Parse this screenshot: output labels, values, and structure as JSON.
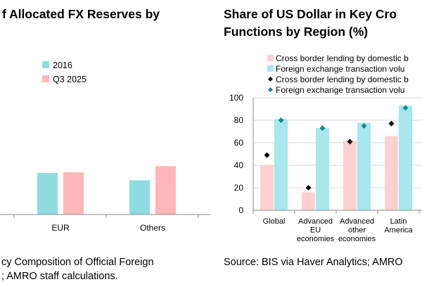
{
  "chart_data": [
    {
      "type": "bar",
      "title_lines": [
        "f Allocated FX Reserves by"
      ],
      "categories": [
        "EUR",
        "Others"
      ],
      "series": [
        {
          "name": "2016",
          "color": "#8fdbe2",
          "values": [
            19.7,
            16.2
          ]
        },
        {
          "name": "Q3 2025",
          "color": "#ffb6b9",
          "values": [
            20.0,
            22.9
          ]
        }
      ],
      "source_lines": [
        "cy Composition of Official Foreign",
        "; AMRO staff calculations."
      ],
      "grid": false,
      "legend_position": "top"
    },
    {
      "type": "bar",
      "title_lines": [
        "Share of US Dollar in Key Cro",
        "Functions by Region (%)"
      ],
      "categories": [
        "Global",
        "Advanced EU economies",
        "Advanced other economies",
        "Latin America"
      ],
      "category_label_lines": [
        [
          "Global"
        ],
        [
          "Advanced",
          "EU",
          "economies"
        ],
        [
          "Advanced",
          "other",
          "economies"
        ],
        [
          "Latin",
          "America"
        ]
      ],
      "ylim": [
        0,
        100
      ],
      "yticks": [
        "0",
        "20",
        "40",
        "60",
        "80",
        "100"
      ],
      "grid": true,
      "legend_position": "top",
      "series": [
        {
          "name": "Cross border lending by domestic b",
          "kind": "bar",
          "color": "#ffd0d0",
          "values": [
            40,
            16,
            62,
            66
          ]
        },
        {
          "name": "Foreign exchange transaction volu",
          "kind": "bar",
          "color": "#a6e8ee",
          "values": [
            81,
            73,
            78,
            93
          ]
        },
        {
          "name": "Cross border lending by domestic b",
          "kind": "marker",
          "marker": "diamond",
          "color": "#000000",
          "values": [
            49,
            20,
            61,
            77
          ]
        },
        {
          "name": "Foreign exchange transaction volu",
          "kind": "marker",
          "marker": "diamond",
          "color": "#1a8a8a",
          "values": [
            80,
            73,
            75,
            91
          ]
        }
      ],
      "source_lines": [
        "Source: BIS via Haver Analytics; AMRO"
      ]
    }
  ]
}
